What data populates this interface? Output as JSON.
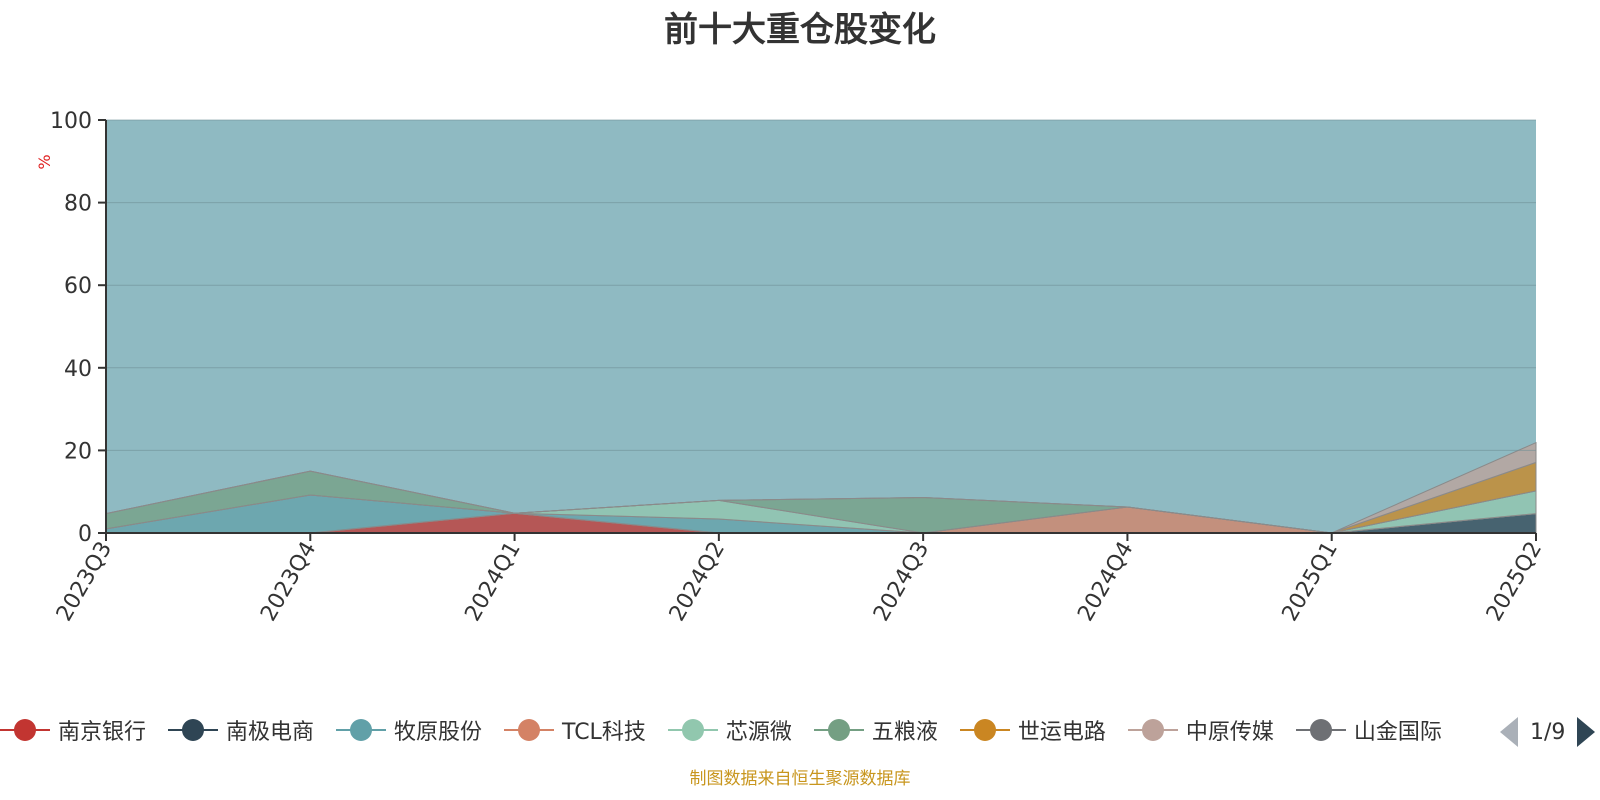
{
  "chart_data": {
    "type": "area",
    "title": "前十大重仓股变化",
    "ylabel": "%",
    "ylim": [
      0,
      100
    ],
    "y_ticks": [
      0,
      20,
      40,
      60,
      80,
      100
    ],
    "categories": [
      "2023Q3",
      "2023Q4",
      "2024Q1",
      "2024Q2",
      "2024Q3",
      "2024Q4",
      "2025Q1",
      "2025Q2"
    ],
    "stacked": true,
    "legend_position": "bottom",
    "grid": true,
    "series": [
      {
        "name": "南京银行",
        "color": "#c23531",
        "values": [
          0,
          0,
          4.8,
          0,
          0,
          0,
          0,
          0
        ]
      },
      {
        "name": "南极电商",
        "color": "#2f4554",
        "values": [
          0,
          0,
          0,
          0,
          0,
          0,
          0,
          4.7
        ]
      },
      {
        "name": "牧原股份",
        "color": "#61a0a8",
        "values": [
          1.0,
          9.2,
          0,
          3.4,
          0,
          0,
          0,
          0
        ]
      },
      {
        "name": "TCL科技",
        "color": "#d48265",
        "values": [
          0,
          0,
          0,
          0,
          0,
          6.3,
          0,
          0
        ]
      },
      {
        "name": "芯源微",
        "color": "#91c7ae",
        "values": [
          0,
          0,
          0,
          4.5,
          0,
          0,
          0,
          5.5
        ]
      },
      {
        "name": "五粮液",
        "color": "#749f83",
        "values": [
          3.7,
          5.8,
          0,
          0,
          8.6,
          0,
          0,
          0
        ]
      },
      {
        "name": "世运电路",
        "color": "#ca8622",
        "values": [
          0,
          0,
          0,
          0,
          0,
          0,
          0,
          6.9
        ]
      },
      {
        "name": "中原传媒",
        "color": "#bda29a",
        "values": [
          0,
          0,
          0,
          0,
          0,
          0,
          0,
          4.8
        ]
      }
    ]
  },
  "legend": {
    "items": [
      {
        "label": "南京银行",
        "color": "#c23531"
      },
      {
        "label": "南极电商",
        "color": "#2f4554"
      },
      {
        "label": "牧原股份",
        "color": "#61a0a8"
      },
      {
        "label": "TCL科技",
        "color": "#d48265"
      },
      {
        "label": "芯源微",
        "color": "#91c7ae"
      },
      {
        "label": "五粮液",
        "color": "#749f83"
      },
      {
        "label": "世运电路",
        "color": "#ca8622"
      },
      {
        "label": "中原传媒",
        "color": "#bda29a"
      },
      {
        "label": "山金国际",
        "color": "#6e7074"
      }
    ],
    "page_text": "1/9"
  },
  "footer": {
    "text": "制图数据来自恒生聚源数据库"
  },
  "palette": [
    "#c23531",
    "#2f4554",
    "#61a0a8",
    "#d48265",
    "#91c7ae",
    "#749f83",
    "#ca8622",
    "#bda29a",
    "#6e7074",
    "#546570",
    "#c4ccd3"
  ]
}
